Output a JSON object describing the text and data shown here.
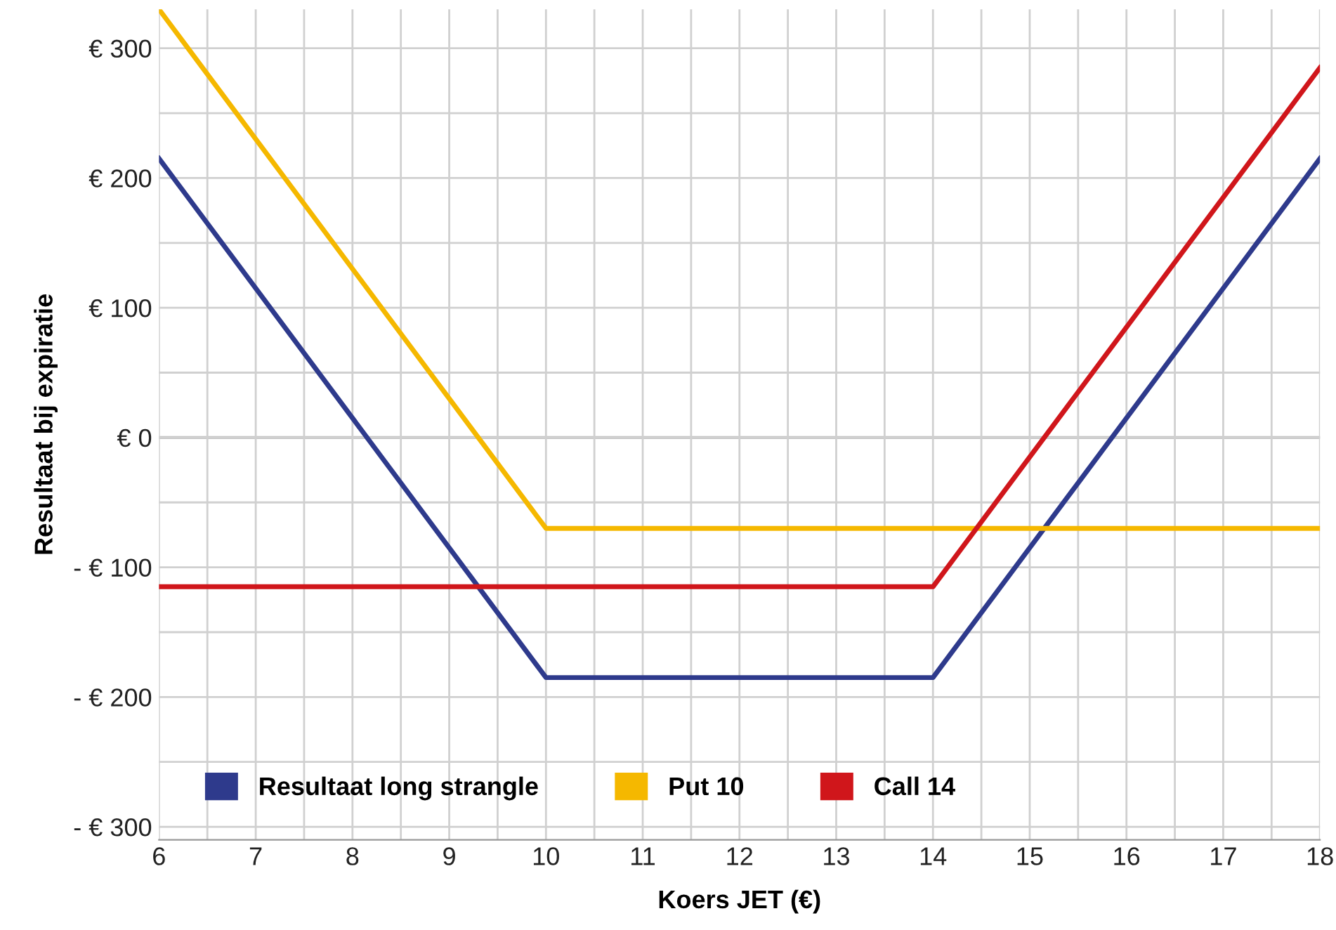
{
  "chart_data": {
    "type": "line",
    "xlabel": "Koers JET (€)",
    "ylabel": "Resultaat bij expiratie",
    "series": [
      {
        "name": "Resultaat long strangle",
        "color": "#2e3a8c",
        "x": [
          6,
          10,
          14,
          18
        ],
        "values": [
          215,
          -185,
          -185,
          215
        ]
      },
      {
        "name": "Put 10",
        "color": "#f5b800",
        "x": [
          6,
          10,
          18
        ],
        "values": [
          330,
          -70,
          -70
        ]
      },
      {
        "name": "Call 14",
        "color": "#d0161b",
        "x": [
          6,
          14,
          18
        ],
        "values": [
          -115,
          -115,
          285
        ]
      }
    ],
    "xlim": [
      6,
      18
    ],
    "ylim": [
      -310,
      330
    ],
    "xticks": [
      6,
      {
        "value": 6.5,
        "label": null
      },
      7,
      {
        "value": 7.5,
        "label": null
      },
      8,
      {
        "value": 8.5,
        "label": null
      },
      9,
      {
        "value": 9.5,
        "label": null
      },
      10,
      {
        "value": 10.5,
        "label": null
      },
      11,
      {
        "value": 11.5,
        "label": null
      },
      12,
      {
        "value": 12.5,
        "label": null
      },
      13,
      {
        "value": 13.5,
        "label": null
      },
      14,
      {
        "value": 14.5,
        "label": null
      },
      15,
      {
        "value": 15.5,
        "label": null
      },
      16,
      {
        "value": 16.5,
        "label": null
      },
      17,
      {
        "value": 17.5,
        "label": null
      },
      18
    ],
    "yticks": [
      {
        "value": -300,
        "label": "- € 300"
      },
      {
        "value": -250,
        "label": null
      },
      {
        "value": -200,
        "label": "- € 200"
      },
      {
        "value": -150,
        "label": null
      },
      {
        "value": -100,
        "label": "- € 100"
      },
      {
        "value": -50,
        "label": null
      },
      {
        "value": 0,
        "label": "€ 0"
      },
      {
        "value": 50,
        "label": null
      },
      {
        "value": 100,
        "label": "€ 100"
      },
      {
        "value": 150,
        "label": null
      },
      {
        "value": 200,
        "label": "€ 200"
      },
      {
        "value": 250,
        "label": null
      },
      {
        "value": 300,
        "label": "€ 300"
      }
    ],
    "grid": true,
    "legend": "bottom left",
    "marker": "none",
    "line_style": "solid"
  }
}
